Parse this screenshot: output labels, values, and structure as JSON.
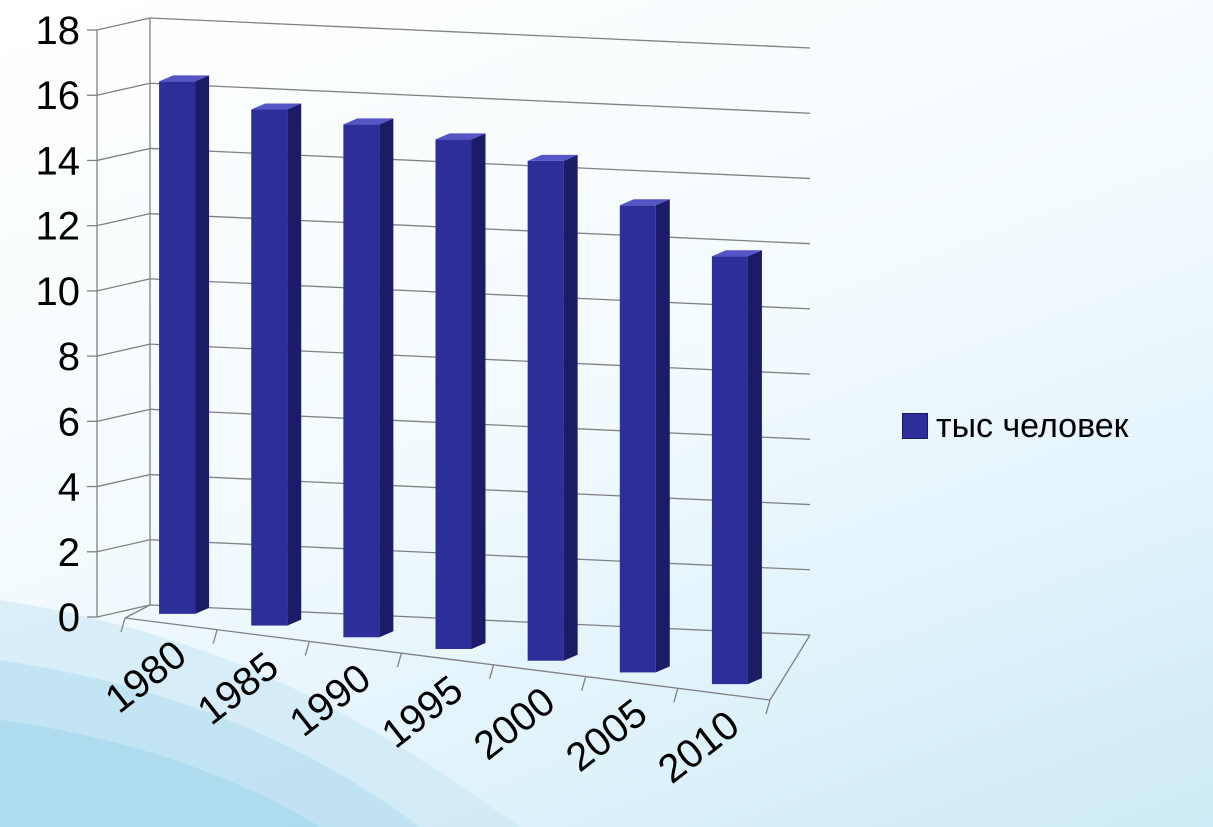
{
  "chart_data": {
    "type": "bar",
    "categories": [
      "1980",
      "1985",
      "1990",
      "1995",
      "2000",
      "2005",
      "2010"
    ],
    "series": [
      {
        "name": "тыс человек",
        "values": [
          16.3,
          15.8,
          15.7,
          15.6,
          15.3,
          14.3,
          13.1
        ]
      }
    ],
    "yticks": [
      "0",
      "2",
      "4",
      "6",
      "8",
      "10",
      "12",
      "14",
      "16",
      "18"
    ],
    "ylim": [
      0,
      18
    ],
    "grid": true,
    "legend_position": "right",
    "colors": {
      "bar_front": "#2e2e9a",
      "bar_side": "#1c1c66",
      "bar_top": "#5555c8",
      "grid": "#808080"
    }
  }
}
